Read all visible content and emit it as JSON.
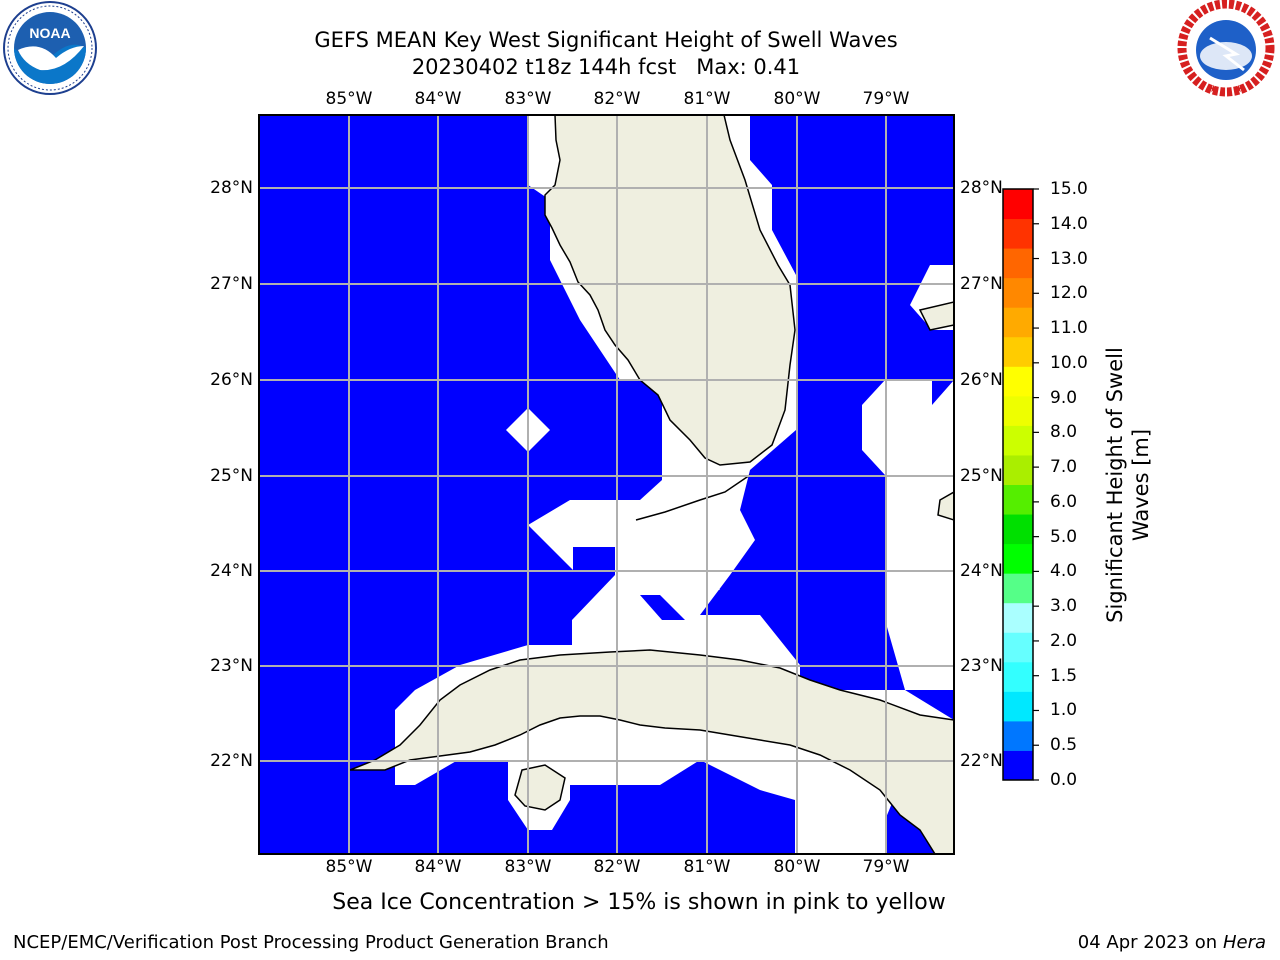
{
  "title": {
    "line1": "GEFS MEAN Key West Significant Height of Swell Waves",
    "line2": "20230402 t18z 144h fcst   Max: 0.41"
  },
  "map": {
    "region": "Key West",
    "lon_labels": [
      "85°W",
      "84°W",
      "83°W",
      "82°W",
      "81°W",
      "80°W",
      "79°W"
    ],
    "lat_labels": [
      "28°N",
      "27°N",
      "26°N",
      "25°N",
      "24°N",
      "23°N",
      "22°N"
    ],
    "colors": {
      "ocean_field": "#0000ff",
      "land": "#efefe0",
      "no_data": "#ffffff",
      "gridline": "#b0b0b0",
      "coastline": "#000000"
    }
  },
  "colorbar": {
    "title": "Significant Height of Swell Waves [m]",
    "tick_labels": [
      "15.0",
      "14.0",
      "13.0",
      "12.0",
      "11.0",
      "10.0",
      "9.0",
      "8.0",
      "7.0",
      "6.0",
      "5.0",
      "4.0",
      "3.0",
      "2.0",
      "1.5",
      "1.0",
      "0.5",
      "0.0"
    ],
    "bins_bottom_to_top": [
      "#0000ff",
      "#0077ff",
      "#00e8ff",
      "#33ffff",
      "#66ffff",
      "#aaffff",
      "#55ff88",
      "#00ff00",
      "#00e000",
      "#55ee00",
      "#aaee00",
      "#ccff00",
      "#eeff00",
      "#ffff00",
      "#ffcc00",
      "#ffaa00",
      "#ff8800",
      "#ff6600",
      "#ff3300",
      "#ff0000"
    ]
  },
  "footnote": "Sea Ice Concentration > 15% is shown in pink to yellow",
  "credits": {
    "left": "NCEP/EMC/Verification Post Processing Product Generation Branch",
    "right_date": "04 Apr 2023 on",
    "right_machine": "Hera"
  },
  "logos": {
    "left": "NOAA",
    "right": "NATIONAL WEATHER SERVICE"
  }
}
